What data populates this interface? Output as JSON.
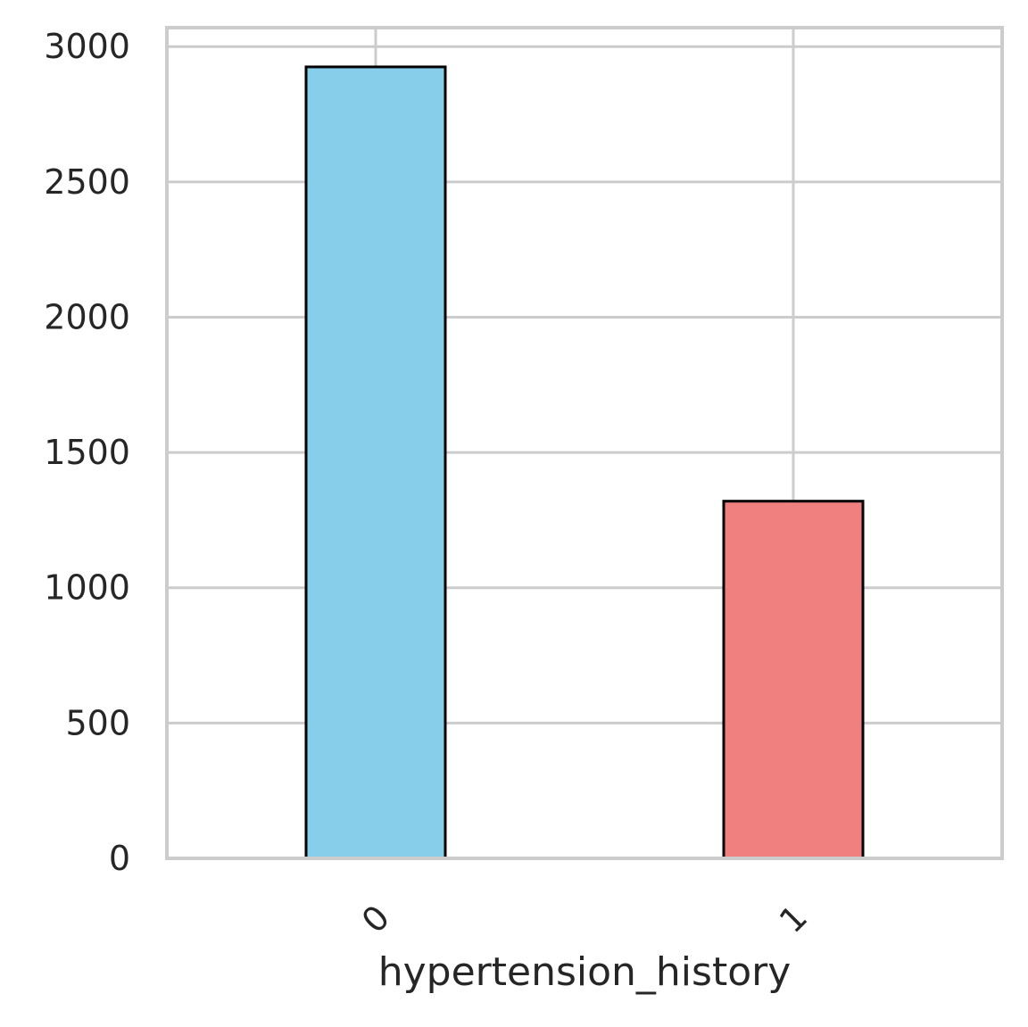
{
  "chart_data": {
    "type": "bar",
    "title": "",
    "xlabel": "hypertension_history",
    "ylabel": "",
    "categories": [
      "0",
      "1"
    ],
    "values": [
      2925,
      1320
    ],
    "colors": [
      "#87CEEB",
      "#F08080"
    ],
    "ylim": [
      0,
      3070
    ],
    "yticks": [
      0,
      500,
      1000,
      1500,
      2000,
      2500,
      3000
    ],
    "grid": true,
    "legend": "none"
  }
}
